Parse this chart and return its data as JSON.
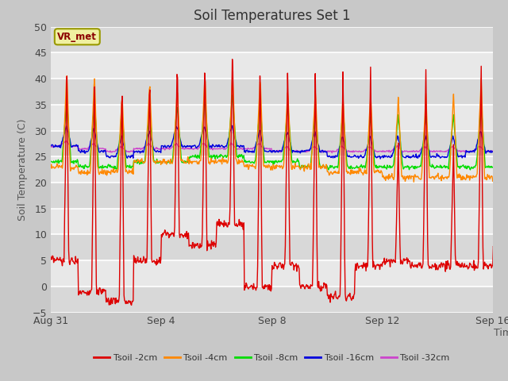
{
  "title": "Soil Temperatures Set 1",
  "xlabel": "Time",
  "ylabel": "Soil Temperature (C)",
  "ylim": [
    -5,
    50
  ],
  "yticks": [
    -5,
    0,
    5,
    10,
    15,
    20,
    25,
    30,
    35,
    40,
    45,
    50
  ],
  "fig_bg_color": "#c8c8c8",
  "plot_bg_color": "#e8e8e8",
  "grid_color": "#ffffff",
  "series_colors": [
    "#dd0000",
    "#ff8800",
    "#00dd00",
    "#0000dd",
    "#cc44cc"
  ],
  "series_labels": [
    "Tsoil -2cm",
    "Tsoil -4cm",
    "Tsoil -8cm",
    "Tsoil -16cm",
    "Tsoil -32cm"
  ],
  "xtick_labels": [
    "Aug 31",
    "Sep 4",
    "Sep 8",
    "Sep 12",
    "Sep 16"
  ],
  "xtick_positions": [
    0,
    4,
    8,
    12,
    16
  ],
  "annotation_text": "VR_met",
  "n_days": 17,
  "samples_per_day": 48
}
